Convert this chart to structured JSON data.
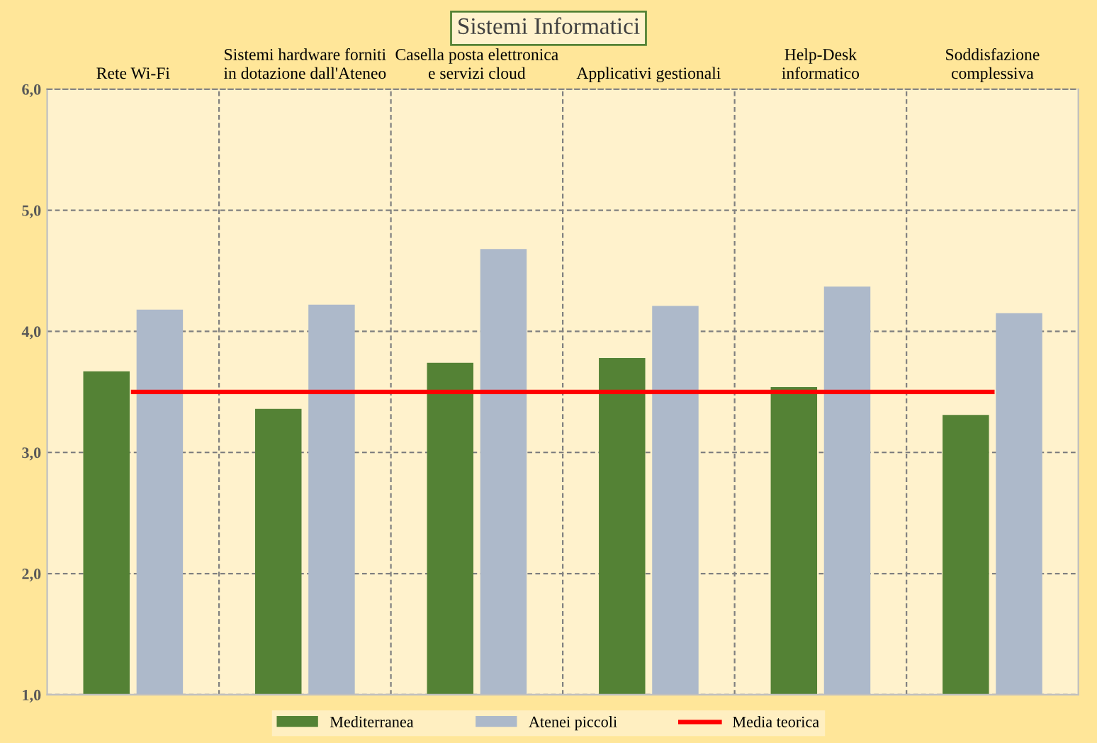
{
  "chart_data": {
    "type": "bar",
    "title": "Sistemi Informatici",
    "categories": [
      "Rete Wi-Fi",
      "Sistemi hardware forniti\nin dotazione dall'Ateneo",
      "Casella posta elettronica\ne servizi cloud",
      "Applicativi gestionali",
      "Help-Desk\ninformatico",
      "Soddisfazione\ncomplessiva"
    ],
    "series": [
      {
        "name": "Mediterranea",
        "color": "#548235",
        "values": [
          3.67,
          3.36,
          3.74,
          3.78,
          3.54,
          3.31
        ]
      },
      {
        "name": "Atenei piccoli",
        "color": "#adb9ca",
        "values": [
          4.18,
          4.22,
          4.68,
          4.21,
          4.37,
          4.15
        ]
      },
      {
        "name": "Media teorica",
        "type": "line",
        "color": "#ff0000",
        "values": [
          3.5,
          3.5,
          3.5,
          3.5,
          3.5,
          3.5
        ]
      }
    ],
    "ylim": [
      1,
      6
    ],
    "yticks": [
      {
        "value": 1,
        "label": "1,0"
      },
      {
        "value": 2,
        "label": "2,0"
      },
      {
        "value": 3,
        "label": "3,0"
      },
      {
        "value": 4,
        "label": "4,0"
      },
      {
        "value": 5,
        "label": "5,0"
      },
      {
        "value": 6,
        "label": "6,0"
      }
    ],
    "grid": true,
    "legend": "bottom"
  }
}
